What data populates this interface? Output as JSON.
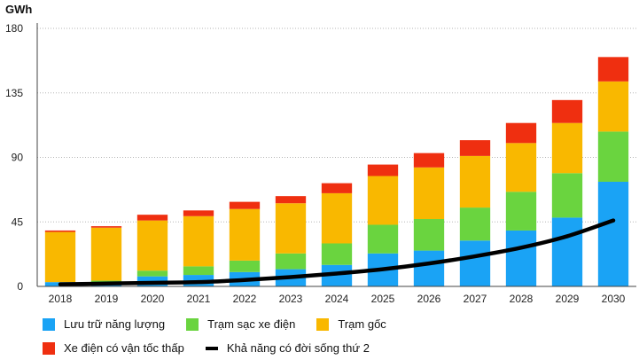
{
  "chart_data": {
    "type": "bar",
    "stacked": true,
    "unit_label": "GWh",
    "categories": [
      "2018",
      "2019",
      "2020",
      "2021",
      "2022",
      "2023",
      "2024",
      "2025",
      "2026",
      "2027",
      "2028",
      "2029",
      "2030"
    ],
    "ylim": [
      0,
      180
    ],
    "yticks": [
      0,
      45,
      90,
      135,
      180
    ],
    "grid": true,
    "legend_placement": "bottom",
    "series": [
      {
        "name": "Lưu trữ năng lượng",
        "color": "#1aa3f5",
        "values": [
          3,
          3,
          7,
          8,
          10,
          12,
          15,
          23,
          25,
          32,
          39,
          48,
          73
        ]
      },
      {
        "name": "Trạm sạc xe điện",
        "color": "#6ad43f",
        "values": [
          0,
          1,
          4,
          6,
          8,
          11,
          15,
          20,
          22,
          23,
          27,
          31,
          35
        ]
      },
      {
        "name": "Trạm gốc",
        "color": "#f9b800",
        "values": [
          35,
          37,
          35,
          35,
          36,
          35,
          35,
          34,
          36,
          36,
          34,
          35,
          35
        ]
      },
      {
        "name": "Xe điện có vận tốc thấp",
        "color": "#ef2f10",
        "values": [
          1,
          1,
          4,
          4,
          5,
          5,
          7,
          8,
          10,
          11,
          14,
          16,
          17
        ]
      }
    ],
    "line_series": {
      "name": "Khả năng có đời sống thứ 2",
      "color": "#000000",
      "values": [
        1.5,
        2,
        2.5,
        3,
        4.5,
        6.5,
        9,
        12,
        16,
        21,
        27,
        35,
        46
      ]
    }
  }
}
